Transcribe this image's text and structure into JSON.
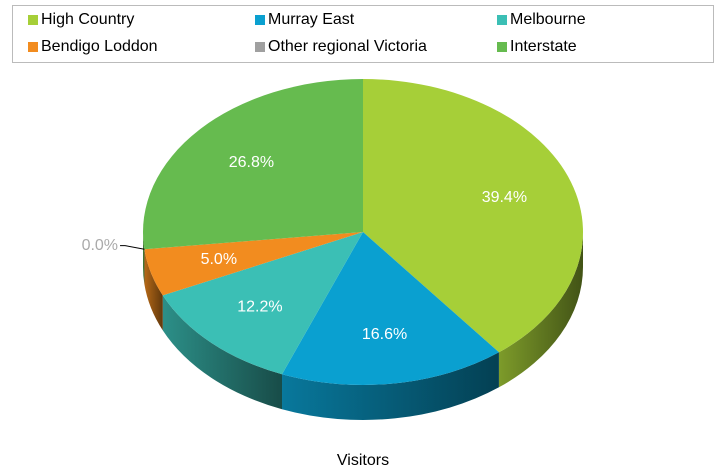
{
  "chart_data": {
    "type": "pie",
    "title": "Visitors",
    "categories": [
      "High Country",
      "Murray East",
      "Melbourne",
      "Bendigo Loddon",
      "Other regional Victoria",
      "Interstate"
    ],
    "values": [
      39.4,
      16.6,
      12.2,
      5.0,
      0.0,
      26.8
    ],
    "value_labels": [
      "39.4%",
      "16.6%",
      "12.2%",
      "5.0%",
      "0.0%",
      "26.8%"
    ],
    "colors": [
      "#a6cf38",
      "#0aa0d0",
      "#3bbfb5",
      "#f28c1f",
      "#a0a0a0",
      "#66bb4f"
    ],
    "legend": "top"
  }
}
